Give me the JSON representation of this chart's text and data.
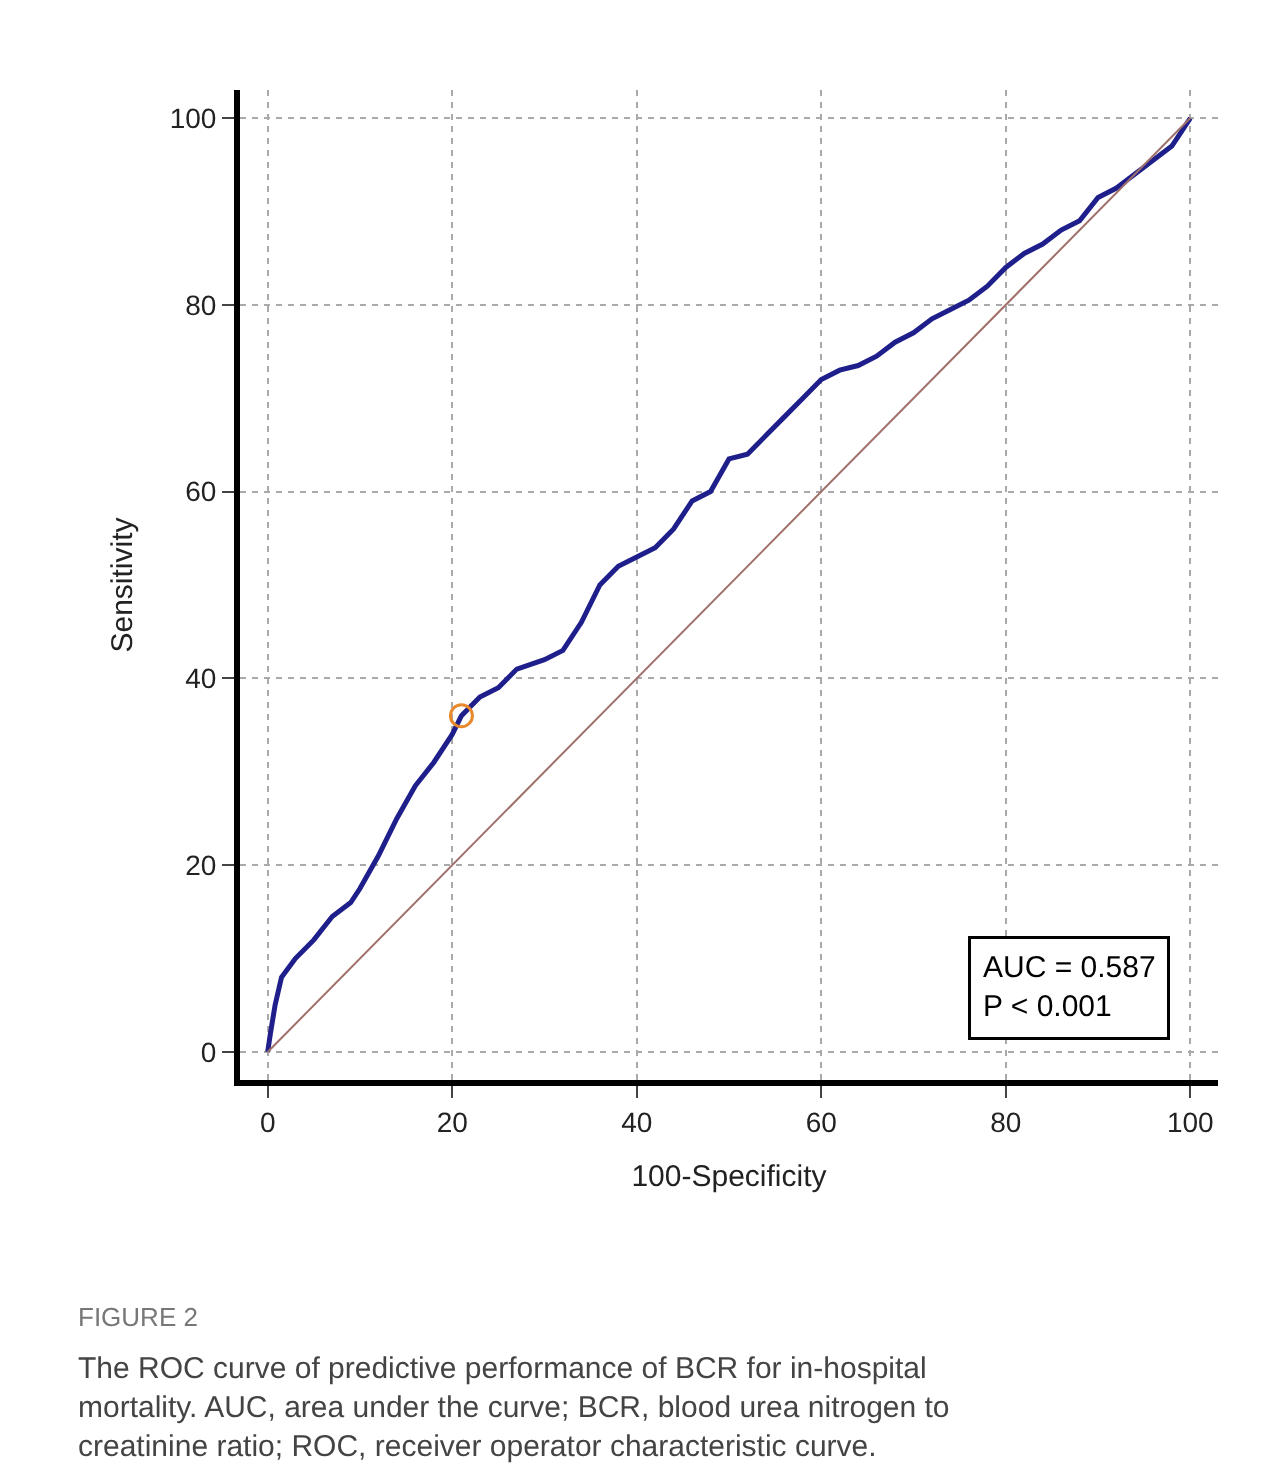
{
  "chart_data": {
    "type": "line",
    "xlabel": "100-Specificity",
    "ylabel": "Sensitivity",
    "xlim": [
      -3,
      103
    ],
    "ylim": [
      -3,
      103
    ],
    "xticks": [
      0,
      20,
      40,
      60,
      80,
      100
    ],
    "yticks": [
      0,
      20,
      40,
      60,
      80,
      100
    ],
    "grid": true,
    "series": [
      {
        "color": "#1f1f8c",
        "marker": "none",
        "line_style": "solid",
        "x": [
          0,
          0.3,
          0.8,
          1.5,
          3,
          5,
          7,
          9,
          10,
          12,
          14,
          16,
          18,
          20,
          21,
          23,
          25,
          27,
          30,
          32,
          34,
          36,
          38,
          40,
          42,
          44,
          46,
          48,
          50,
          52,
          54,
          56,
          58,
          60,
          62,
          64,
          66,
          68,
          70,
          72,
          74,
          76,
          78,
          80,
          82,
          84,
          86,
          88,
          90,
          92,
          94,
          96,
          98,
          99,
          100
        ],
        "values": [
          0,
          2,
          5,
          8,
          10,
          12,
          14.5,
          16,
          17.5,
          21,
          25,
          28.5,
          31,
          34,
          36,
          38,
          39,
          41,
          42,
          43,
          46,
          50,
          52,
          53,
          54,
          56,
          59,
          60,
          63.5,
          64,
          66,
          68,
          70,
          72,
          73,
          73.5,
          74.5,
          76,
          77,
          78.5,
          79.5,
          80.5,
          82,
          84,
          85.5,
          86.5,
          88,
          89,
          91.5,
          92.5,
          94,
          95.5,
          97,
          98.5,
          100
        ]
      },
      {
        "color": "#a0706a",
        "marker": "none",
        "line_style": "solid",
        "x": [
          0,
          100
        ],
        "values": [
          0,
          100
        ]
      },
      {
        "type": "scatter",
        "color": "#e8892c",
        "marker": "circle",
        "x": [
          21
        ],
        "values": [
          36
        ]
      }
    ],
    "annotations": [
      "AUC = 0.587\nP < 0.001",
      "FIGURE 2",
      "The ROC curve of predictive performance of BCR for in-hospital mortality. AUC, area under the curve; BCR, blood urea nitrogen to creatinine ratio; ROC, receiver operator characteristic curve."
    ]
  }
}
